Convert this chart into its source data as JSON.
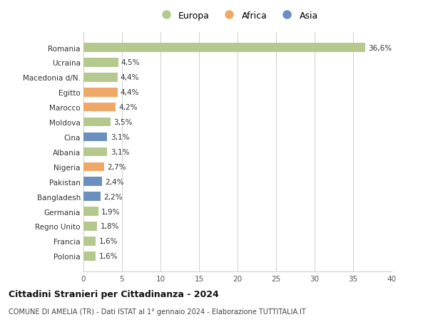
{
  "categories": [
    "Polonia",
    "Francia",
    "Regno Unito",
    "Germania",
    "Bangladesh",
    "Pakistan",
    "Nigeria",
    "Albania",
    "Cina",
    "Moldova",
    "Marocco",
    "Egitto",
    "Macedonia d/N.",
    "Ucraina",
    "Romania"
  ],
  "values": [
    1.6,
    1.6,
    1.8,
    1.9,
    2.2,
    2.4,
    2.7,
    3.1,
    3.1,
    3.5,
    4.2,
    4.4,
    4.4,
    4.5,
    36.6
  ],
  "labels": [
    "1,6%",
    "1,6%",
    "1,8%",
    "1,9%",
    "2,2%",
    "2,4%",
    "2,7%",
    "3,1%",
    "3,1%",
    "3,5%",
    "4,2%",
    "4,4%",
    "4,4%",
    "4,5%",
    "36,6%"
  ],
  "continents": [
    "Europa",
    "Europa",
    "Europa",
    "Europa",
    "Asia",
    "Asia",
    "Africa",
    "Europa",
    "Asia",
    "Europa",
    "Africa",
    "Africa",
    "Europa",
    "Europa",
    "Europa"
  ],
  "colors": {
    "Europa": "#b5c98e",
    "Africa": "#f0a868",
    "Asia": "#6b8fbf"
  },
  "title": "Cittadini Stranieri per Cittadinanza - 2024",
  "subtitle": "COMUNE DI AMELIA (TR) - Dati ISTAT al 1° gennaio 2024 - Elaborazione TUTTITALIA.IT",
  "xlim": [
    0,
    40
  ],
  "xticks": [
    0,
    5,
    10,
    15,
    20,
    25,
    30,
    35,
    40
  ],
  "background_color": "#ffffff",
  "grid_color": "#d0d0d0"
}
